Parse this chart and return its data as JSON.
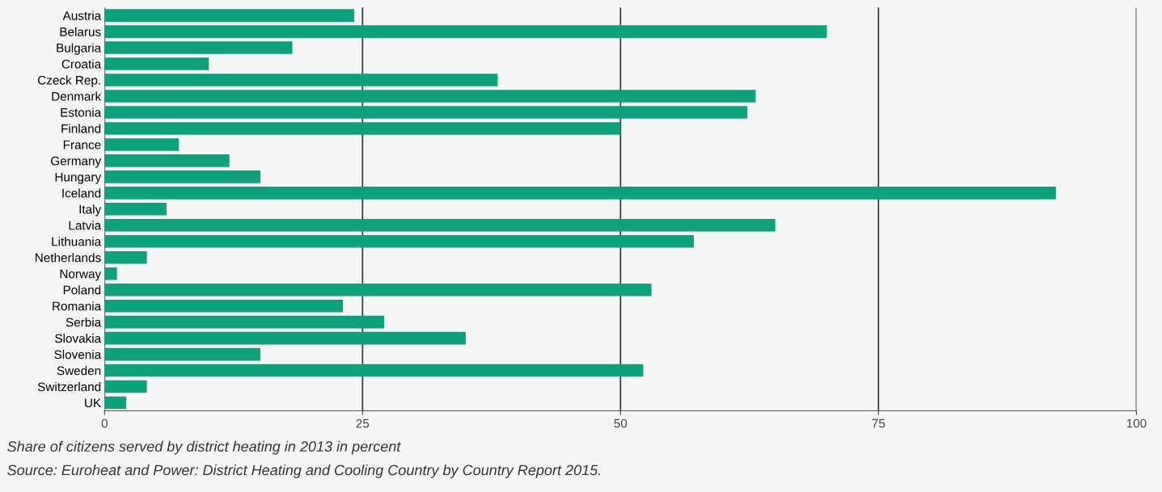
{
  "chart_data": {
    "type": "bar",
    "orientation": "horizontal",
    "categories": [
      "Austria",
      "Belarus",
      "Bulgaria",
      "Croatia",
      "Czeck Rep.",
      "Denmark",
      "Estonia",
      "Finland",
      "France",
      "Germany",
      "Hungary",
      "Iceland",
      "Italy",
      "Latvia",
      "Lithuania",
      "Netherlands",
      "Norway",
      "Poland",
      "Romania",
      "Serbia",
      "Slovakia",
      "Slovenia",
      "Sweden",
      "Switzerland",
      "UK"
    ],
    "values": [
      24.2,
      70.0,
      18.2,
      10.1,
      38.1,
      63.1,
      62.3,
      50.0,
      7.2,
      12.1,
      15.1,
      92.2,
      6.0,
      65.0,
      57.1,
      4.1,
      1.2,
      53.0,
      23.1,
      27.1,
      35.0,
      15.1,
      52.2,
      4.1,
      2.1
    ],
    "color": "#0fa07c",
    "xlim": [
      0,
      100
    ],
    "xticks": [
      0,
      25,
      50,
      75,
      100
    ],
    "grid": "x",
    "annotations": [
      "Share of citizens served by district heating in 2013 in percent",
      "Source: Euroheat and Power: District Heating and Cooling Country by Country Report 2015."
    ]
  }
}
